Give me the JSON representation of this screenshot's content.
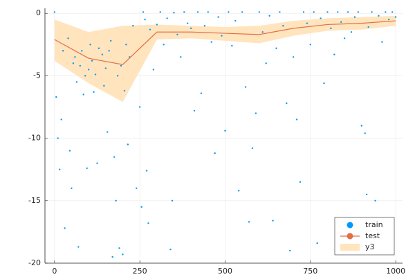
{
  "chart_data": {
    "type": "scatter-line-band",
    "xlim": [
      -28,
      1020
    ],
    "ylim": [
      -20,
      0.4
    ],
    "xticks": [
      0,
      250,
      500,
      750,
      1000
    ],
    "yticks": [
      0,
      -5,
      -10,
      -15,
      -20
    ],
    "grid": true,
    "legend": "bottom-right",
    "series": [
      {
        "name": "train",
        "type": "scatter",
        "color": "#009af9",
        "x": [
          0,
          5,
          10,
          15,
          20,
          25,
          30,
          40,
          45,
          50,
          55,
          60,
          65,
          70,
          75,
          80,
          85,
          90,
          95,
          100,
          105,
          110,
          115,
          120,
          125,
          130,
          140,
          145,
          150,
          155,
          160,
          165,
          170,
          175,
          180,
          185,
          190,
          195,
          200,
          205,
          210,
          215,
          220,
          230,
          240,
          250,
          255,
          260,
          265,
          270,
          275,
          280,
          290,
          300,
          310,
          320,
          330,
          340,
          345,
          350,
          360,
          370,
          380,
          390,
          400,
          410,
          420,
          430,
          440,
          450,
          460,
          470,
          480,
          490,
          500,
          510,
          520,
          530,
          540,
          550,
          560,
          570,
          580,
          590,
          600,
          610,
          620,
          630,
          640,
          650,
          660,
          670,
          680,
          690,
          700,
          710,
          720,
          730,
          740,
          750,
          760,
          770,
          780,
          790,
          800,
          810,
          820,
          830,
          840,
          850,
          860,
          870,
          880,
          890,
          900,
          910,
          915,
          920,
          930,
          940,
          950,
          960,
          970,
          980,
          990,
          1000
        ],
        "values": [
          0.1,
          -6.7,
          -10,
          -12.5,
          -8.5,
          -3,
          -17.2,
          -2,
          -11,
          -14,
          -4,
          -3.5,
          -5.5,
          -18.7,
          -4.2,
          -3,
          -6.5,
          -5,
          -12.4,
          -4.5,
          -2.5,
          -3.8,
          -6.3,
          -4.9,
          -12,
          -2.8,
          -3.3,
          -5.8,
          -4.4,
          -9.5,
          -3,
          -2.2,
          -19.5,
          -11.5,
          -15,
          -5,
          -18.8,
          -4.2,
          -19.3,
          -6.2,
          -2.5,
          -10.5,
          -3.5,
          -1,
          -14,
          -7.5,
          -15.5,
          0.1,
          -0.5,
          -12.6,
          -16.8,
          -1.3,
          -4.5,
          -0.9,
          0.1,
          -2.5,
          -0.4,
          -18.9,
          -15,
          0.05,
          -1.7,
          -3.5,
          0.1,
          -0.8,
          -1.2,
          -7.8,
          0.1,
          -6.4,
          -1,
          0.1,
          -2.3,
          -11.2,
          -0.3,
          -1.8,
          -9.4,
          0.1,
          -2.6,
          -0.6,
          -14.2,
          0.1,
          -5.9,
          -16.7,
          -10.8,
          -8,
          0.1,
          -1.5,
          -4,
          -0.2,
          -16.6,
          -2.8,
          0.1,
          -1,
          -7.2,
          -19,
          -3.5,
          -8.5,
          -13.5,
          0.1,
          -0.8,
          -2.5,
          0.1,
          -18.4,
          -0.4,
          -5.6,
          0.1,
          -1.2,
          -3.3,
          0.1,
          -0.7,
          -2,
          0.1,
          -1.5,
          -0.3,
          0.1,
          -9,
          -9.6,
          -14.5,
          -1.1,
          0.1,
          -15,
          -0.2,
          -2.3,
          0.1,
          -0.5,
          0.1,
          -0.3
        ]
      },
      {
        "name": "test",
        "type": "line",
        "color": "#e26f46",
        "x": [
          0,
          100,
          200,
          300,
          400,
          500,
          600,
          700,
          800,
          900,
          1000
        ],
        "values": [
          -2.1,
          -3.6,
          -4.1,
          -1.5,
          -1.5,
          -1.6,
          -1.7,
          -1.2,
          -0.9,
          -0.8,
          -0.6
        ]
      },
      {
        "name": "y3",
        "type": "band",
        "color": "#ffe4bd",
        "x": [
          0,
          100,
          200,
          300,
          400,
          500,
          600,
          700,
          800,
          900,
          1000
        ],
        "lower": [
          -3.8,
          -5.6,
          -7.1,
          -2.1,
          -2.0,
          -2.2,
          -2.4,
          -1.8,
          -1.4,
          -1.3,
          -1.0
        ],
        "upper": [
          -0.5,
          -1.5,
          -1.0,
          -0.9,
          -1.0,
          -1.1,
          -1.0,
          -0.6,
          -0.4,
          -0.3,
          -0.2
        ]
      }
    ]
  }
}
